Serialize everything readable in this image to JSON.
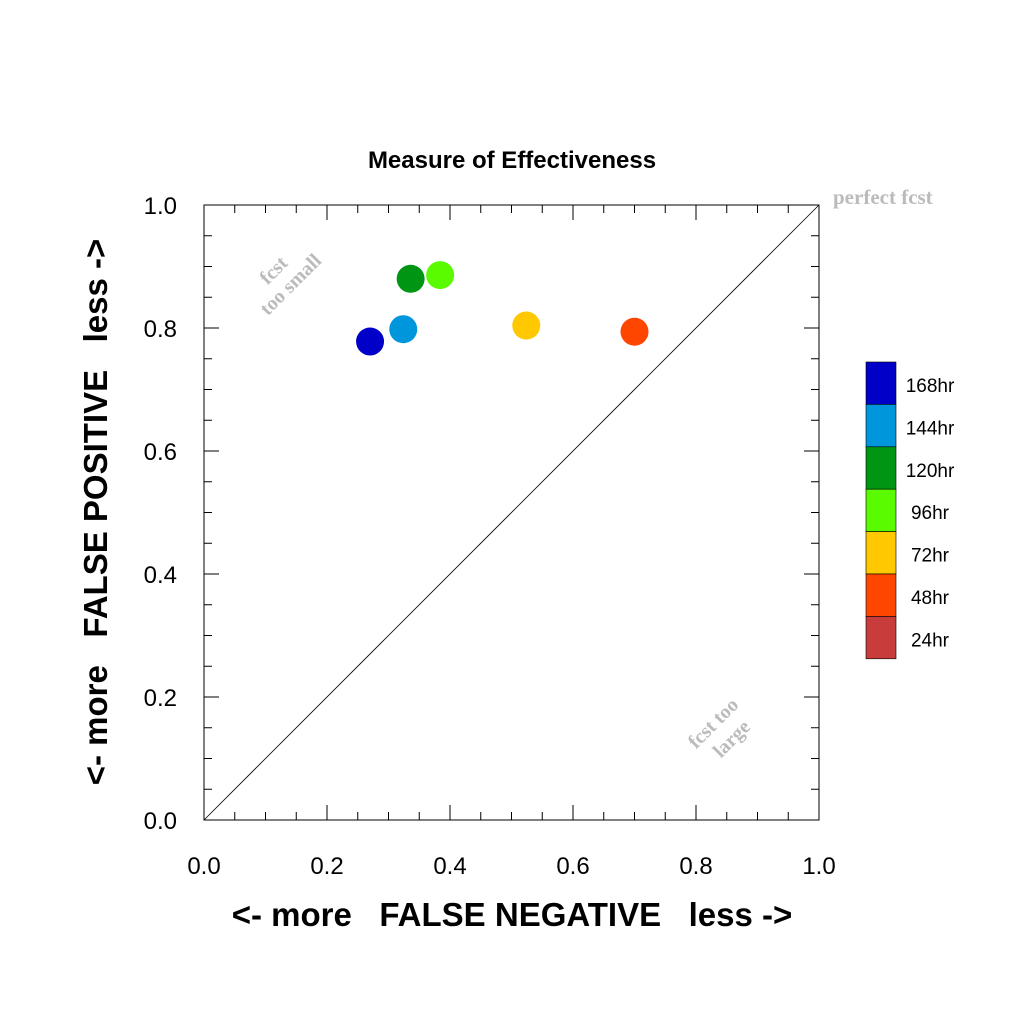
{
  "chart_data": {
    "type": "scatter",
    "title": "Measure of Effectiveness",
    "xlabel": "<- more   FALSE NEGATIVE   less ->",
    "ylabel": "<- more   FALSE POSITIVE   less ->",
    "xlim": [
      0,
      1
    ],
    "ylim": [
      0,
      1
    ],
    "xticks": [
      "0.0",
      "0.2",
      "0.4",
      "0.6",
      "0.8",
      "1.0"
    ],
    "yticks": [
      "0.0",
      "0.2",
      "0.4",
      "0.6",
      "0.8",
      "1.0"
    ],
    "xtick_values": [
      0,
      0.2,
      0.4,
      0.6,
      0.8,
      1.0
    ],
    "ytick_values": [
      0,
      0.2,
      0.4,
      0.6,
      0.8,
      1.0
    ],
    "minor_step": 0.05,
    "grid": false,
    "reference_line": {
      "from": [
        0,
        0
      ],
      "to": [
        1,
        1
      ]
    },
    "annotations": {
      "perfect": "perfect fcst",
      "small_line1": "fcst",
      "small_line2": "too small",
      "large_line1": "fcst too",
      "large_line2": "large"
    },
    "legend_position": "right",
    "series": [
      {
        "name": "168hr",
        "color": "#0000C8",
        "x": 0.27,
        "y": 0.778
      },
      {
        "name": "144hr",
        "color": "#0096DC",
        "x": 0.324,
        "y": 0.798
      },
      {
        "name": "120hr",
        "color": "#009614",
        "x": 0.336,
        "y": 0.88
      },
      {
        "name": "96hr",
        "color": "#5AFA00",
        "x": 0.384,
        "y": 0.886
      },
      {
        "name": "72hr",
        "color": "#FFC800",
        "x": 0.524,
        "y": 0.804
      },
      {
        "name": "48hr",
        "color": "#FF4600",
        "x": 0.7,
        "y": 0.794
      }
    ],
    "legend": [
      {
        "label": "168hr",
        "color": "#0000C8"
      },
      {
        "label": "144hr",
        "color": "#0096DC"
      },
      {
        "label": "120hr",
        "color": "#009614"
      },
      {
        "label": "96hr",
        "color": "#5AFA00"
      },
      {
        "label": "72hr",
        "color": "#FFC800"
      },
      {
        "label": "48hr",
        "color": "#FF4600"
      },
      {
        "label": "24hr",
        "color": "#C83C3C"
      }
    ]
  }
}
